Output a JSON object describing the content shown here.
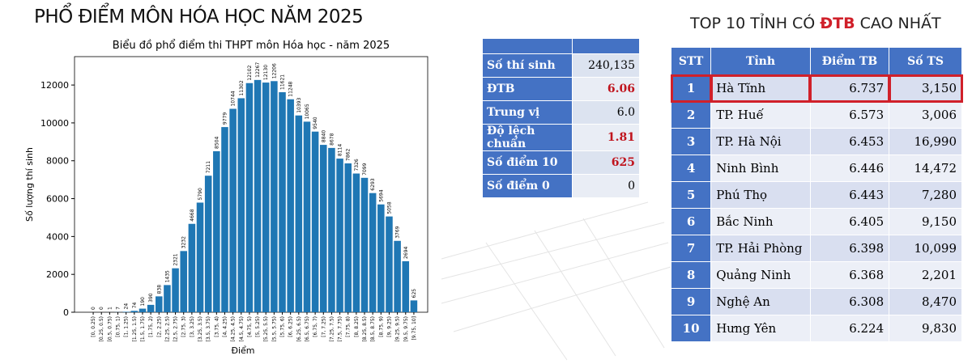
{
  "page_title": "PHỔ ĐIỂM MÔN HÓA HỌC NĂM 2025",
  "chart_data": {
    "type": "bar",
    "title": "Biểu đồ phổ điểm thi THPT môn Hóa học - năm 2025",
    "xlabel": "Điểm",
    "ylabel": "Số lượng thí sinh",
    "categories": [
      "[0, 0.25)",
      "[0.25, 0.5)",
      "[0.5, 0.75)",
      "[0.75, 1)",
      "[1, 1.25)",
      "[1.25, 1.5)",
      "[1.5, 1.75)",
      "[1.75, 2)",
      "[2, 2.25)",
      "[2.25, 2.5)",
      "[2.5, 2.75)",
      "[2.75, 3)",
      "[3, 3.25)",
      "[3.25, 3.5)",
      "[3.5, 3.75)",
      "[3.75, 4)",
      "[4, 4.25)",
      "[4.25, 4.5)",
      "[4.5, 4.75)",
      "[4.75, 5)",
      "[5, 5.25)",
      "[5.25, 5.5)",
      "[5.5, 5.75)",
      "[5.75, 6)",
      "[6, 6.25)",
      "[6.25, 6.5)",
      "[6.5, 6.75)",
      "[6.75, 7)",
      "[7, 7.25)",
      "[7.25, 7.5)",
      "[7.5, 7.75)",
      "[7.75, 8)",
      "[8, 8.25)",
      "[8.25, 8.5)",
      "[8.5, 8.75)",
      "[8.75, 9)",
      "[9, 9.25)",
      "[9.25, 9.5)",
      "[9.5, 9.75)",
      "[9.75, 10]"
    ],
    "values": [
      0,
      0,
      1,
      7,
      24,
      74,
      190,
      390,
      838,
      1435,
      2321,
      3232,
      4668,
      5790,
      7211,
      8504,
      9779,
      10744,
      11302,
      12102,
      12267,
      12130,
      12206,
      11621,
      11248,
      10393,
      10065,
      9540,
      8840,
      8678,
      8114,
      7862,
      7326,
      7099,
      6293,
      5694,
      5058,
      3769,
      2694,
      625
    ],
    "color": "#1f77b4",
    "ylim": [
      0,
      13500
    ],
    "yticks": [
      0,
      2000,
      4000,
      6000,
      8000,
      10000,
      12000
    ]
  },
  "stats_table": {
    "rows": [
      [
        "Số thí sinh",
        "240,135"
      ],
      [
        "ĐTB",
        "6.06"
      ],
      [
        "Trung vị",
        "6.0"
      ],
      [
        "Độ lệch chuẩn",
        "1.81"
      ],
      [
        "Số điểm 10",
        "625"
      ],
      [
        "Số điểm 0",
        "0"
      ]
    ],
    "highlight_rows": [
      1,
      3,
      4
    ],
    "highlight_color": "#c0151e"
  },
  "top_table": {
    "title_parts": [
      "TOP 10 TỈNH CÓ",
      "ĐTB",
      "CAO NHẤT"
    ],
    "header": [
      "STT",
      "Tỉnh",
      "Điểm TB",
      "Số TS"
    ],
    "rows": [
      [
        "1",
        "Hà Tĩnh",
        "6.737",
        "3,150"
      ],
      [
        "2",
        "TP. Huế",
        "6.573",
        "3,006"
      ],
      [
        "3",
        "TP. Hà Nội",
        "6.453",
        "16,990"
      ],
      [
        "4",
        "Ninh Bình",
        "6.446",
        "14,472"
      ],
      [
        "5",
        "Phú Thọ",
        "6.443",
        "7,280"
      ],
      [
        "6",
        "Bắc Ninh",
        "6.405",
        "9,150"
      ],
      [
        "7",
        "TP. Hải Phòng",
        "6.398",
        "10,099"
      ],
      [
        "8",
        "Quảng Ninh",
        "6.368",
        "2,201"
      ],
      [
        "9",
        "Nghệ An",
        "6.308",
        "8,470"
      ],
      [
        "10",
        "Hưng Yên",
        "6.224",
        "9,830"
      ]
    ],
    "highlight_row": 0,
    "highlight_color": "#d0202a"
  }
}
